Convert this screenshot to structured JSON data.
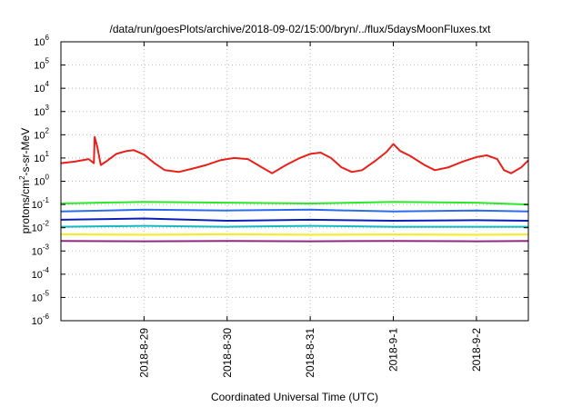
{
  "chart_data": {
    "type": "line",
    "title": "/data/run/goesPlots/archive/2018-09-02/15:00/bryn/../flux/5daysMoonFluxes.txt",
    "xlabel": "Coordinated Universal Time (UTC)",
    "ylabel_parts": [
      "protons/cm",
      "2",
      "-s-sr-MeV"
    ],
    "y_scale": "log",
    "ylim_exp": [
      -6,
      6
    ],
    "y_tick_base": "10",
    "y_tick_exponents": [
      "-6",
      "-5",
      "-4",
      "-3",
      "-2",
      "-1",
      "0",
      "1",
      "2",
      "3",
      "4",
      "5",
      "6"
    ],
    "x_range": [
      "2018-08-28T00:00",
      "2018-09-02T15:00"
    ],
    "x_ticks": [
      "2018-8-29",
      "2018-8-30",
      "2018-8-31",
      "2018-9-1",
      "2018-9-2"
    ],
    "grid": true,
    "series": [
      {
        "color": "#e8201a",
        "points": [
          [
            "2018-08-28T00:00",
            6
          ],
          [
            "2018-08-28T04:00",
            7
          ],
          [
            "2018-08-28T08:00",
            9
          ],
          [
            "2018-08-28T09:30",
            6
          ],
          [
            "2018-08-28T09:45",
            80
          ],
          [
            "2018-08-28T10:30",
            30
          ],
          [
            "2018-08-28T11:30",
            5
          ],
          [
            "2018-08-28T13:00",
            7
          ],
          [
            "2018-08-28T16:00",
            15
          ],
          [
            "2018-08-28T19:00",
            20
          ],
          [
            "2018-08-28T21:00",
            22
          ],
          [
            "2018-08-29T00:00",
            14
          ],
          [
            "2018-08-29T03:00",
            6
          ],
          [
            "2018-08-29T06:00",
            3
          ],
          [
            "2018-08-29T10:00",
            2.5
          ],
          [
            "2018-08-29T14:00",
            3.5
          ],
          [
            "2018-08-29T18:00",
            5
          ],
          [
            "2018-08-29T22:00",
            8
          ],
          [
            "2018-08-30T02:00",
            10
          ],
          [
            "2018-08-30T06:00",
            9
          ],
          [
            "2018-08-30T10:00",
            4
          ],
          [
            "2018-08-30T13:00",
            2.2
          ],
          [
            "2018-08-30T17:00",
            5
          ],
          [
            "2018-08-30T21:00",
            10
          ],
          [
            "2018-08-31T00:00",
            15
          ],
          [
            "2018-08-31T03:00",
            17
          ],
          [
            "2018-08-31T06:00",
            10
          ],
          [
            "2018-08-31T09:00",
            4
          ],
          [
            "2018-08-31T12:00",
            2.5
          ],
          [
            "2018-08-31T15:00",
            3
          ],
          [
            "2018-08-31T19:00",
            8
          ],
          [
            "2018-08-31T22:00",
            18
          ],
          [
            "2018-09-01T00:00",
            40
          ],
          [
            "2018-09-01T02:00",
            20
          ],
          [
            "2018-09-01T05:00",
            12
          ],
          [
            "2018-09-01T09:00",
            5
          ],
          [
            "2018-09-01T12:00",
            3
          ],
          [
            "2018-09-01T16:00",
            4
          ],
          [
            "2018-09-01T20:00",
            7
          ],
          [
            "2018-09-02T00:00",
            11
          ],
          [
            "2018-09-02T03:00",
            13
          ],
          [
            "2018-09-02T06:00",
            9
          ],
          [
            "2018-09-02T08:00",
            3
          ],
          [
            "2018-09-02T10:00",
            2.2
          ],
          [
            "2018-09-02T13:00",
            4
          ],
          [
            "2018-09-02T15:00",
            8
          ]
        ]
      },
      {
        "color": "#2be82b",
        "points": [
          [
            "2018-08-28T00:00",
            0.11
          ],
          [
            "2018-08-29T00:00",
            0.13
          ],
          [
            "2018-08-30T00:00",
            0.12
          ],
          [
            "2018-08-31T00:00",
            0.11
          ],
          [
            "2018-09-01T00:00",
            0.13
          ],
          [
            "2018-09-02T00:00",
            0.12
          ],
          [
            "2018-09-02T15:00",
            0.1
          ]
        ]
      },
      {
        "color": "#2a6cf0",
        "points": [
          [
            "2018-08-28T00:00",
            0.05
          ],
          [
            "2018-08-29T00:00",
            0.06
          ],
          [
            "2018-08-30T00:00",
            0.055
          ],
          [
            "2018-08-31T00:00",
            0.06
          ],
          [
            "2018-09-01T00:00",
            0.05
          ],
          [
            "2018-09-02T00:00",
            0.055
          ],
          [
            "2018-09-02T15:00",
            0.05
          ]
        ]
      },
      {
        "color": "#0a1fb8",
        "points": [
          [
            "2018-08-28T00:00",
            0.022
          ],
          [
            "2018-08-29T00:00",
            0.025
          ],
          [
            "2018-08-30T00:00",
            0.02
          ],
          [
            "2018-08-31T00:00",
            0.022
          ],
          [
            "2018-09-01T00:00",
            0.02
          ],
          [
            "2018-09-02T00:00",
            0.021
          ],
          [
            "2018-09-02T15:00",
            0.02
          ]
        ]
      },
      {
        "color": "#16b9c4",
        "points": [
          [
            "2018-08-28T00:00",
            0.011
          ],
          [
            "2018-08-29T00:00",
            0.012
          ],
          [
            "2018-08-30T00:00",
            0.011
          ],
          [
            "2018-08-31T00:00",
            0.012
          ],
          [
            "2018-09-01T00:00",
            0.011
          ],
          [
            "2018-09-02T00:00",
            0.011
          ],
          [
            "2018-09-02T15:00",
            0.011
          ]
        ]
      },
      {
        "color": "#f2ee1c",
        "points": [
          [
            "2018-08-28T00:00",
            0.0052
          ],
          [
            "2018-08-29T00:00",
            0.005
          ],
          [
            "2018-08-30T00:00",
            0.0052
          ],
          [
            "2018-08-31T00:00",
            0.005
          ],
          [
            "2018-09-01T00:00",
            0.0051
          ],
          [
            "2018-09-02T00:00",
            0.005
          ],
          [
            "2018-09-02T15:00",
            0.0051
          ]
        ]
      },
      {
        "color": "#8e2a82",
        "points": [
          [
            "2018-08-28T00:00",
            0.0027
          ],
          [
            "2018-08-29T00:00",
            0.0026
          ],
          [
            "2018-08-30T00:00",
            0.0027
          ],
          [
            "2018-08-31T00:00",
            0.0026
          ],
          [
            "2018-09-01T00:00",
            0.0027
          ],
          [
            "2018-09-02T00:00",
            0.0026
          ],
          [
            "2018-09-02T15:00",
            0.0027
          ]
        ]
      }
    ]
  }
}
